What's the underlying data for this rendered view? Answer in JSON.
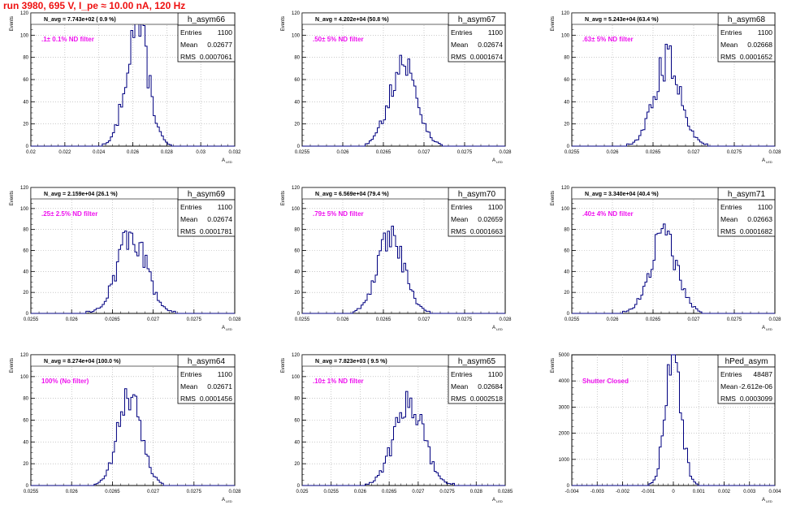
{
  "page_title": "run 3980,   695 V, I_pe ≈ 10.00 nA, 120 Hz",
  "colors": {
    "histogram": "#000080",
    "note": "#ee11ee",
    "title": "#ee1111",
    "grid": "#aaaaaa"
  },
  "axis_label_y": "Events",
  "axis_label_x": "A",
  "axis_label_x_sub": "LED",
  "stat_labels": {
    "entries": "Entries",
    "mean": "Mean",
    "rms": "RMS"
  },
  "chart_data": [
    {
      "type": "histogram",
      "name": "h_asym66",
      "navg": "N_avg = 7.743e+02 ( 0.9 %)",
      "note": ".1± 0.1% ND filter",
      "entries": "1100",
      "mean": "0.02677",
      "rms": "0.0007061",
      "mean_value": 0.02677,
      "rms_value": 0.0007061,
      "peak": 110,
      "xlim": [
        0.02,
        0.033
      ],
      "ylim": [
        0,
        120
      ],
      "xticks": [
        "0.02",
        "0.022",
        "0.024",
        "0.026",
        "0.028",
        "0.03",
        "0.032"
      ],
      "yticks": [
        "0",
        "20",
        "40",
        "60",
        "80",
        "100",
        "120"
      ]
    },
    {
      "type": "histogram",
      "name": "h_asym67",
      "navg": "N_avg = 4.202e+04 (50.8 %)",
      "note": ".50± 5% ND filter",
      "entries": "1100",
      "mean": "0.02674",
      "rms": "0.0001674",
      "mean_value": 0.02674,
      "rms_value": 0.0001674,
      "peak": 75,
      "xlim": [
        0.0255,
        0.028
      ],
      "ylim": [
        0,
        120
      ],
      "xticks": [
        "0.0255",
        "0.026",
        "0.0265",
        "0.027",
        "0.0275",
        "0.028"
      ],
      "yticks": [
        "0",
        "20",
        "40",
        "60",
        "80",
        "100",
        "120"
      ]
    },
    {
      "type": "histogram",
      "name": "h_asym68",
      "navg": "N_avg = 5.243e+04 (63.4 %)",
      "note": ".63± 5% ND filter",
      "entries": "1100",
      "mean": "0.02668",
      "rms": "0.0001652",
      "mean_value": 0.02668,
      "rms_value": 0.0001652,
      "peak": 77,
      "xlim": [
        0.0255,
        0.028
      ],
      "ylim": [
        0,
        120
      ],
      "xticks": [
        "0.0255",
        "0.026",
        "0.0265",
        "0.027",
        "0.0275",
        "0.028"
      ],
      "yticks": [
        "0",
        "20",
        "40",
        "60",
        "80",
        "100",
        "120"
      ]
    },
    {
      "type": "histogram",
      "name": "h_asym69",
      "navg": "N_avg = 2.159e+04 (26.1 %)",
      "note": ".25± 2.5% ND filter",
      "entries": "1100",
      "mean": "0.02674",
      "rms": "0.0001781",
      "mean_value": 0.02674,
      "rms_value": 0.0001781,
      "peak": 75,
      "xlim": [
        0.0255,
        0.028
      ],
      "ylim": [
        0,
        120
      ],
      "xticks": [
        "0.0255",
        "0.026",
        "0.0265",
        "0.027",
        "0.0275",
        "0.028"
      ],
      "yticks": [
        "0",
        "20",
        "40",
        "60",
        "80",
        "100",
        "120"
      ]
    },
    {
      "type": "histogram",
      "name": "h_asym70",
      "navg": "N_avg = 6.569e+04 (79.4 %)",
      "note": ".79± 5% ND filter",
      "entries": "1100",
      "mean": "0.02659",
      "rms": "0.0001663",
      "mean_value": 0.02659,
      "rms_value": 0.0001663,
      "peak": 70,
      "xlim": [
        0.0255,
        0.028
      ],
      "ylim": [
        0,
        120
      ],
      "xticks": [
        "0.0255",
        "0.026",
        "0.0265",
        "0.027",
        "0.0275",
        "0.028"
      ],
      "yticks": [
        "0",
        "20",
        "40",
        "60",
        "80",
        "100",
        "120"
      ]
    },
    {
      "type": "histogram",
      "name": "h_asym71",
      "navg": "N_avg = 3.340e+04 (40.4 %)",
      "note": ".40± 4% ND filter",
      "entries": "1100",
      "mean": "0.02663",
      "rms": "0.0001682",
      "mean_value": 0.02663,
      "rms_value": 0.0001682,
      "peak": 72,
      "xlim": [
        0.0255,
        0.028
      ],
      "ylim": [
        0,
        120
      ],
      "xticks": [
        "0.0255",
        "0.026",
        "0.0265",
        "0.027",
        "0.0275",
        "0.028"
      ],
      "yticks": [
        "0",
        "20",
        "40",
        "60",
        "80",
        "100",
        "120"
      ]
    },
    {
      "type": "histogram",
      "name": "h_asym64",
      "navg": "N_avg = 8.274e+04 (100.0 %)",
      "note": "100% (No filter)",
      "entries": "1100",
      "mean": "0.02671",
      "rms": "0.0001456",
      "mean_value": 0.02671,
      "rms_value": 0.0001456,
      "peak": 80,
      "xlim": [
        0.0255,
        0.028
      ],
      "ylim": [
        0,
        120
      ],
      "xticks": [
        "0.0255",
        "0.026",
        "0.0265",
        "0.027",
        "0.0275",
        "0.028"
      ],
      "yticks": [
        "0",
        "20",
        "40",
        "60",
        "80",
        "100",
        "120"
      ]
    },
    {
      "type": "histogram",
      "name": "h_asym65",
      "navg": "N_avg = 7.823e+03 ( 9.5 %)",
      "note": ".10± 1% ND filter",
      "entries": "1100",
      "mean": "0.02684",
      "rms": "0.0002518",
      "mean_value": 0.02684,
      "rms_value": 0.0002518,
      "peak": 77,
      "xlim": [
        0.025,
        0.0285
      ],
      "ylim": [
        0,
        120
      ],
      "xticks": [
        "0.025",
        "0.0255",
        "0.026",
        "0.0265",
        "0.027",
        "0.0275",
        "0.028",
        "0.0285"
      ],
      "yticks": [
        "0",
        "20",
        "40",
        "60",
        "80",
        "100",
        "120"
      ]
    },
    {
      "type": "histogram",
      "name": "hPed_asym",
      "navg": "",
      "note": "Shutter Closed",
      "entries": "48487",
      "mean": "-2.612e-06",
      "rms": "0.0003099",
      "mean_value": -2.612e-06,
      "rms_value": 0.0003099,
      "peak": 4950,
      "xlim": [
        -0.004,
        0.004
      ],
      "ylim": [
        0,
        5000
      ],
      "xticks": [
        "-0.004",
        "-0.003",
        "-0.002",
        "-0.001",
        "0",
        "0.001",
        "0.002",
        "0.003",
        "0.004"
      ],
      "yticks": [
        "0",
        "1000",
        "2000",
        "3000",
        "4000",
        "5000"
      ]
    }
  ]
}
